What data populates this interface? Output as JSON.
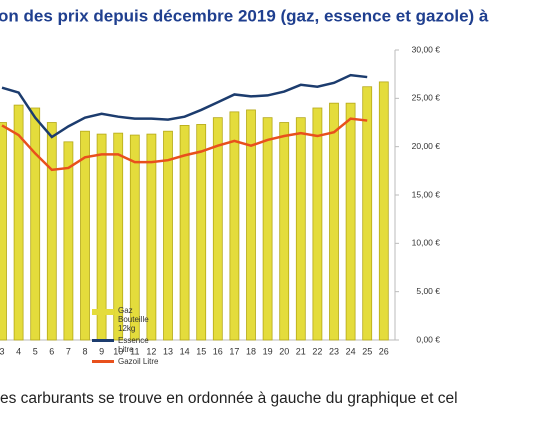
{
  "chart_data": {
    "type": "bar-line",
    "title": "on des prix depuis décembre 2019 (gaz, essence et gazole) à",
    "categories": [
      "3",
      "4",
      "5",
      "6",
      "7",
      "8",
      "9",
      "10",
      "11",
      "12",
      "13",
      "14",
      "15",
      "16",
      "17",
      "18",
      "19",
      "20",
      "21",
      "22",
      "23",
      "24",
      "25",
      "26"
    ],
    "series": [
      {
        "name": "Gaz Bouteille 12kg",
        "kind": "bar",
        "color": "#e4dc3c",
        "values": [
          22.5,
          24.3,
          24.0,
          22.5,
          20.5,
          21.6,
          21.3,
          21.4,
          21.2,
          21.3,
          21.6,
          22.2,
          22.3,
          23.0,
          23.6,
          23.8,
          23.0,
          22.5,
          23.0,
          24.0,
          24.5,
          24.5,
          26.2,
          26.7
        ]
      },
      {
        "name": "Essence Litre",
        "kind": "line",
        "color": "#1c3c6e",
        "values": [
          26.1,
          25.6,
          23.0,
          21.0,
          22.1,
          23.0,
          23.4,
          23.1,
          22.9,
          22.9,
          22.8,
          23.1,
          23.8,
          24.6,
          25.4,
          25.2,
          25.3,
          25.7,
          26.4,
          26.2,
          26.6,
          27.4,
          27.2,
          null
        ]
      },
      {
        "name": "Gazoil Litre",
        "kind": "line",
        "color": "#e8501c",
        "values": [
          22.2,
          21.2,
          19.3,
          17.6,
          17.8,
          18.9,
          19.2,
          19.2,
          18.4,
          18.4,
          18.6,
          19.1,
          19.5,
          20.1,
          20.6,
          20.1,
          20.7,
          21.1,
          21.4,
          21.1,
          21.5,
          22.9,
          22.7,
          null
        ]
      }
    ],
    "ylim": [
      0,
      30
    ],
    "yticks": [
      {
        "value": 0,
        "label": "0,00 €"
      },
      {
        "value": 5,
        "label": "5,00 €"
      },
      {
        "value": 10,
        "label": "10,00 €"
      },
      {
        "value": 15,
        "label": "15,00 €"
      },
      {
        "value": 20,
        "label": "20,00 €"
      },
      {
        "value": 25,
        "label": "25,00 €"
      },
      {
        "value": 30,
        "label": "30,00 €"
      }
    ],
    "caption": "es carburants se trouve en ordonnée à gauche du graphique et cel"
  }
}
